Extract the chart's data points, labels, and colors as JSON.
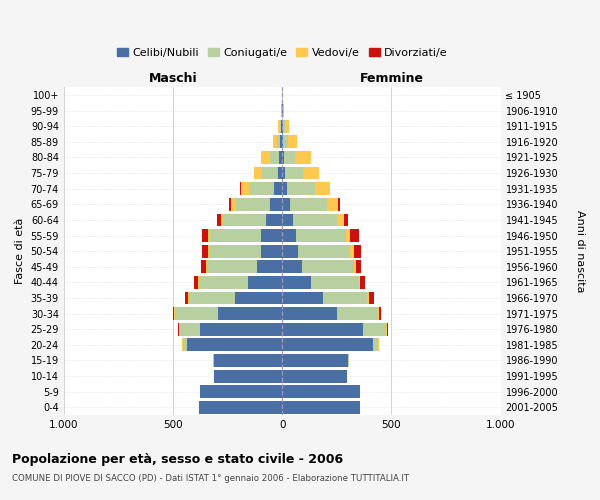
{
  "age_groups": [
    "0-4",
    "5-9",
    "10-14",
    "15-19",
    "20-24",
    "25-29",
    "30-34",
    "35-39",
    "40-44",
    "45-49",
    "50-54",
    "55-59",
    "60-64",
    "65-69",
    "70-74",
    "75-79",
    "80-84",
    "85-89",
    "90-94",
    "95-99",
    "100+"
  ],
  "birth_years": [
    "2001-2005",
    "1996-2000",
    "1991-1995",
    "1986-1990",
    "1981-1985",
    "1976-1980",
    "1971-1975",
    "1966-1970",
    "1961-1965",
    "1956-1960",
    "1951-1955",
    "1946-1950",
    "1941-1945",
    "1936-1940",
    "1931-1935",
    "1926-1930",
    "1921-1925",
    "1916-1920",
    "1911-1915",
    "1906-1910",
    "≤ 1905"
  ],
  "colors": {
    "celibi": "#4a6fa5",
    "coniugati": "#b8cfa0",
    "vedovi": "#ffc94f",
    "divorziati": "#cc1111"
  },
  "males": {
    "celibi": [
      380,
      375,
      310,
      310,
      435,
      375,
      295,
      215,
      155,
      115,
      95,
      95,
      75,
      55,
      38,
      18,
      13,
      8,
      4,
      3,
      2
    ],
    "coniugati": [
      0,
      0,
      2,
      5,
      18,
      95,
      195,
      210,
      225,
      230,
      240,
      235,
      195,
      155,
      115,
      75,
      45,
      18,
      7,
      2,
      0
    ],
    "vedovi": [
      0,
      0,
      0,
      0,
      4,
      4,
      4,
      4,
      4,
      4,
      5,
      8,
      12,
      25,
      35,
      38,
      38,
      18,
      7,
      2,
      0
    ],
    "divorziati": [
      0,
      0,
      0,
      0,
      4,
      5,
      8,
      14,
      18,
      22,
      25,
      28,
      18,
      8,
      4,
      0,
      0,
      0,
      0,
      0,
      0
    ]
  },
  "females": {
    "celibi": [
      355,
      355,
      295,
      300,
      415,
      370,
      250,
      185,
      130,
      92,
      72,
      62,
      48,
      35,
      22,
      12,
      8,
      5,
      3,
      2,
      1
    ],
    "coniugati": [
      0,
      0,
      2,
      5,
      22,
      105,
      190,
      205,
      220,
      235,
      240,
      230,
      205,
      170,
      130,
      85,
      52,
      20,
      8,
      3,
      0
    ],
    "vedovi": [
      0,
      0,
      0,
      0,
      4,
      4,
      4,
      8,
      8,
      10,
      15,
      20,
      28,
      52,
      65,
      72,
      72,
      42,
      18,
      5,
      0
    ],
    "divorziati": [
      0,
      0,
      0,
      0,
      4,
      5,
      8,
      22,
      22,
      25,
      35,
      38,
      22,
      8,
      4,
      0,
      0,
      0,
      0,
      0,
      0
    ]
  },
  "title": "Popolazione per età, sesso e stato civile - 2006",
  "subtitle": "COMUNE DI PIOVE DI SACCO (PD) - Dati ISTAT 1° gennaio 2006 - Elaborazione TUTTITALIA.IT",
  "xlabel_left": "Maschi",
  "xlabel_right": "Femmine",
  "ylabel_left": "Fasce di età",
  "ylabel_right": "Anni di nascita",
  "xlim": 1000,
  "xticks": [
    -1000,
    -500,
    0,
    500,
    1000
  ],
  "xticklabels": [
    "1.000",
    "500",
    "0",
    "500",
    "1.000"
  ],
  "bg_color": "#f5f5f5",
  "plot_bg_color": "#ffffff",
  "legend_labels": [
    "Celibi/Nubili",
    "Coniugati/e",
    "Vedovi/e",
    "Divorziati/e"
  ],
  "grid_color": "#cccccc"
}
